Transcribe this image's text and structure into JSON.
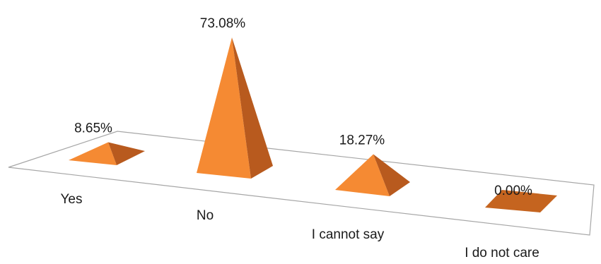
{
  "chart_data": {
    "type": "bar",
    "style": "3d-pyramid",
    "categories": [
      "Yes",
      "No",
      "I cannot say",
      "I do not care"
    ],
    "values": [
      8.65,
      73.08,
      18.27,
      0.0
    ],
    "data_labels": [
      "8.65%",
      "73.08%",
      "18.27%",
      "0.00%"
    ],
    "unit": "%",
    "title": "",
    "xlabel": "",
    "ylabel": "",
    "legend": "none",
    "grid": false,
    "colors": {
      "front": "#F58A33",
      "side": "#B85A1E",
      "flat_top": "#C5641F",
      "floor_edge": "#A6A6A6"
    }
  }
}
